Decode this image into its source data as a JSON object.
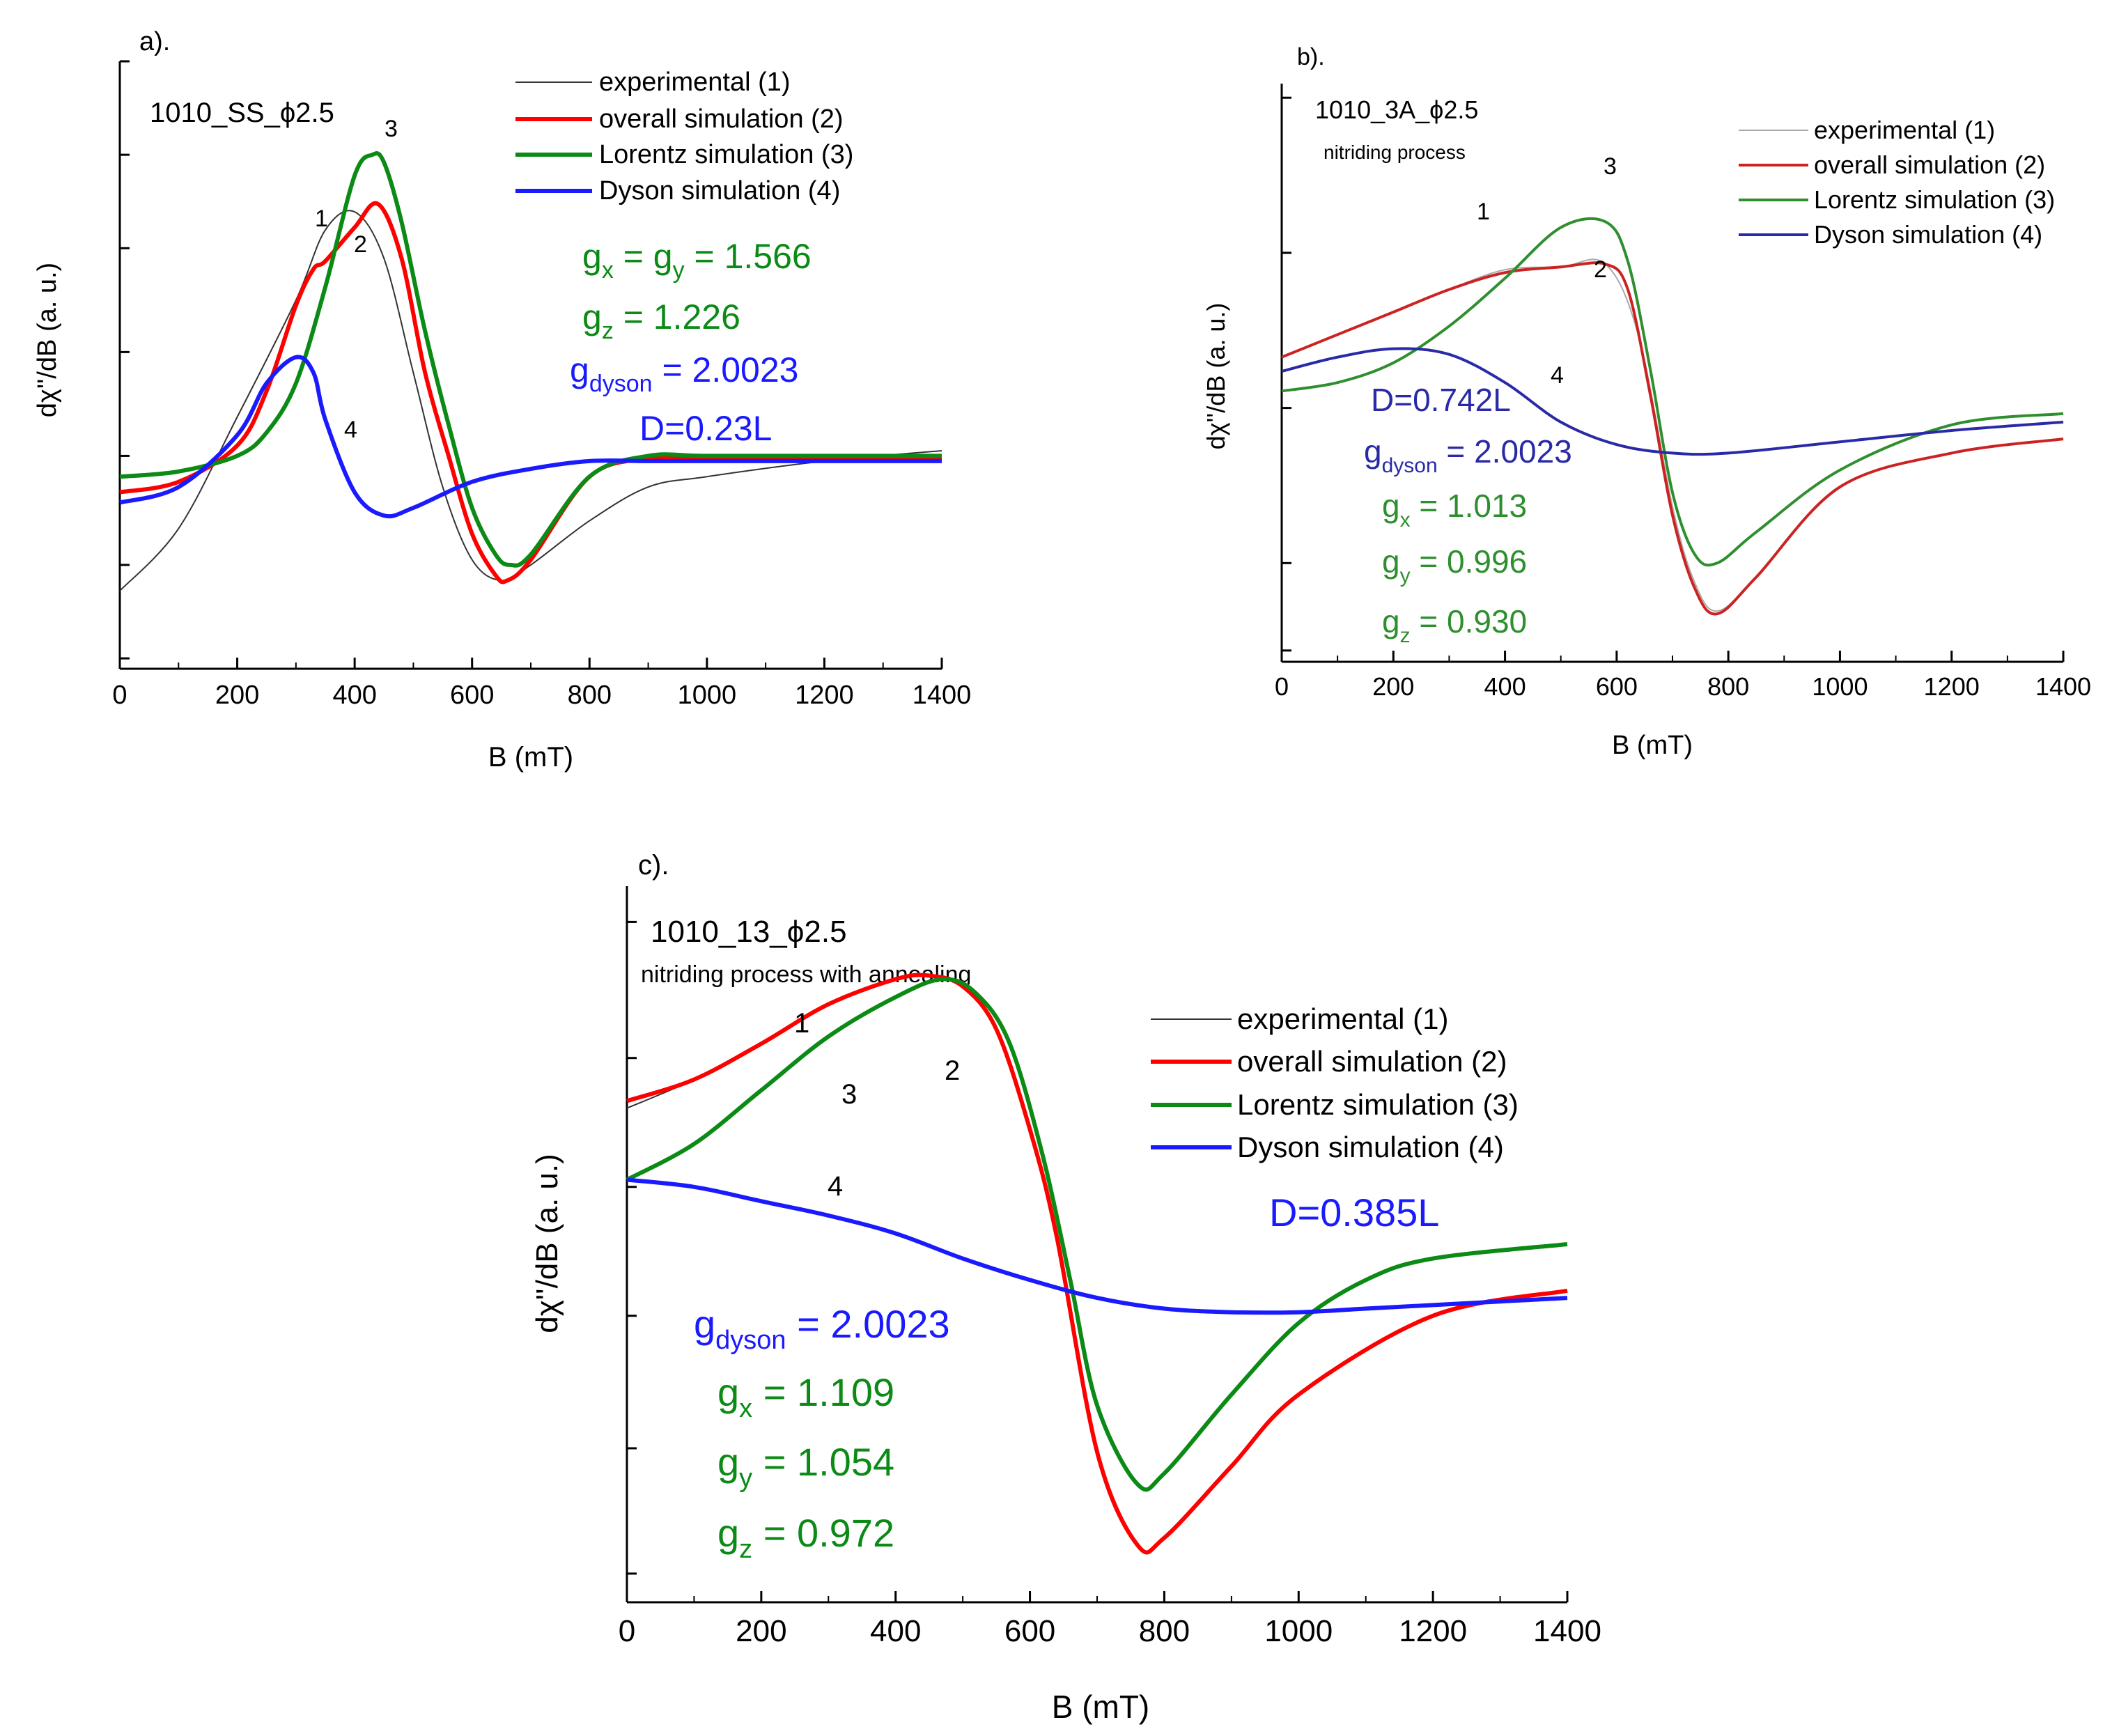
{
  "chart_data": [
    {
      "type": "line",
      "panel_label": "a).",
      "sample": "1010_SS_ϕ2.5",
      "subtitle": "",
      "xlabel": "B (mT)",
      "ylabel": "dχ''/dB (a. u.)",
      "xlim": [
        0,
        1400
      ],
      "ylim": [
        -1.0,
        1.0
      ],
      "xticks": [
        0,
        200,
        400,
        600,
        800,
        1000,
        1200,
        1400
      ],
      "legend": [
        "experimental (1)",
        "overall simulation (2)",
        "Lorentz simulation (3)",
        "Dyson simulation (4)"
      ],
      "curve_labels": [
        "1",
        "2",
        "3",
        "4"
      ],
      "params": [
        {
          "text": "g",
          "sub": "x",
          "rest": " = g",
          "sub2": "y",
          "tail": " = 1.566",
          "color": "#0b8a16"
        },
        {
          "text": "g",
          "sub": "z",
          "rest": " = 1.226",
          "sub2": "",
          "tail": "",
          "color": "#0b8a16"
        },
        {
          "text": "g",
          "sub": "dyson",
          "rest": " = 2.0023",
          "sub2": "",
          "tail": "",
          "color": "#1a1aff"
        },
        {
          "text": "D=0.23L",
          "sub": "",
          "rest": "",
          "sub2": "",
          "tail": "",
          "color": "#1a1aff"
        }
      ],
      "series": [
        {
          "name": "experimental (1)",
          "color": "#333333",
          "x": [
            0,
            100,
            200,
            300,
            350,
            400,
            450,
            500,
            550,
            600,
            650,
            700,
            800,
            900,
            1000,
            1200,
            1400
          ],
          "values": [
            -0.62,
            -0.38,
            0.05,
            0.5,
            0.77,
            0.84,
            0.66,
            0.22,
            -0.22,
            -0.5,
            -0.58,
            -0.52,
            -0.35,
            -0.22,
            -0.18,
            -0.12,
            -0.08
          ]
        },
        {
          "name": "overall simulation (2)",
          "color": "#ff0000",
          "x": [
            0,
            100,
            200,
            250,
            300,
            330,
            350,
            400,
            440,
            480,
            520,
            560,
            600,
            640,
            660,
            700,
            800,
            900,
            1000,
            1200,
            1400
          ],
          "values": [
            -0.24,
            -0.2,
            -0.06,
            0.15,
            0.48,
            0.62,
            0.65,
            0.78,
            0.87,
            0.66,
            0.22,
            -0.1,
            -0.4,
            -0.56,
            -0.58,
            -0.5,
            -0.18,
            -0.11,
            -0.11,
            -0.11,
            -0.11
          ]
        },
        {
          "name": "Lorentz simulation (3)",
          "color": "#0b8a16",
          "x": [
            0,
            100,
            200,
            250,
            300,
            350,
            400,
            430,
            450,
            480,
            520,
            560,
            600,
            640,
            665,
            700,
            800,
            900,
            1000,
            1200,
            1400
          ],
          "values": [
            -0.18,
            -0.16,
            -0.1,
            -0.01,
            0.18,
            0.55,
            0.98,
            1.06,
            1.03,
            0.8,
            0.38,
            0.02,
            -0.3,
            -0.48,
            -0.52,
            -0.48,
            -0.18,
            -0.1,
            -0.1,
            -0.1,
            -0.1
          ]
        },
        {
          "name": "Dyson simulation (4)",
          "color": "#1a1aff",
          "x": [
            0,
            100,
            200,
            250,
            300,
            330,
            350,
            400,
            450,
            500,
            600,
            700,
            800,
            900,
            1000,
            1200,
            1400
          ],
          "values": [
            -0.28,
            -0.22,
            -0.02,
            0.18,
            0.28,
            0.22,
            0.04,
            -0.24,
            -0.33,
            -0.3,
            -0.2,
            -0.15,
            -0.12,
            -0.12,
            -0.12,
            -0.12,
            -0.12
          ]
        }
      ]
    },
    {
      "type": "line",
      "panel_label": "b).",
      "sample": "1010_3A_ϕ2.5",
      "subtitle": "nitriding process",
      "xlabel": "B (mT)",
      "ylabel": "dχ''/dB (a. u.)",
      "xlim": [
        0,
        1400
      ],
      "ylim": [
        -1.0,
        1.0
      ],
      "xticks": [
        0,
        200,
        400,
        600,
        800,
        1000,
        1200,
        1400
      ],
      "legend": [
        "experimental (1)",
        "overall simulation (2)",
        "Lorentz simulation (3)",
        "Dyson simulation (4)"
      ],
      "curve_labels": [
        "1",
        "2",
        "3",
        "4"
      ],
      "params": [
        {
          "text": "D=0.742L",
          "sub": "",
          "rest": "",
          "sub2": "",
          "tail": "",
          "color": "#2a2aa8"
        },
        {
          "text": "g",
          "sub": "dyson",
          "rest": " = 2.0023",
          "sub2": "",
          "tail": "",
          "color": "#2a2aa8"
        },
        {
          "text": "g",
          "sub": "x",
          "rest": " = 1.013",
          "sub2": "",
          "tail": "",
          "color": "#2f8f2f"
        },
        {
          "text": "g",
          "sub": "y",
          "rest": " = 0.996",
          "sub2": "",
          "tail": "",
          "color": "#2f8f2f"
        },
        {
          "text": "g",
          "sub": "z",
          "rest": " = 0.930",
          "sub2": "",
          "tail": "",
          "color": "#2f8f2f"
        }
      ],
      "series": [
        {
          "name": "experimental (1)",
          "color": "#aaaaaa",
          "x": [
            0,
            100,
            200,
            300,
            400,
            500,
            580,
            640,
            700,
            740,
            780,
            850,
            1000,
            1200,
            1400
          ],
          "values": [
            0.18,
            0.26,
            0.34,
            0.42,
            0.49,
            0.5,
            0.51,
            0.25,
            -0.35,
            -0.62,
            -0.72,
            -0.6,
            -0.28,
            -0.16,
            -0.11
          ]
        },
        {
          "name": "overall simulation (2)",
          "color": "#cc2222",
          "x": [
            0,
            100,
            200,
            300,
            400,
            500,
            580,
            620,
            660,
            700,
            740,
            780,
            850,
            1000,
            1200,
            1400
          ],
          "values": [
            0.18,
            0.26,
            0.34,
            0.42,
            0.48,
            0.5,
            0.51,
            0.42,
            0.05,
            -0.38,
            -0.64,
            -0.73,
            -0.6,
            -0.28,
            -0.16,
            -0.11
          ]
        },
        {
          "name": "Lorentz simulation (3)",
          "color": "#2f8f2f",
          "x": [
            0,
            100,
            200,
            300,
            400,
            500,
            580,
            620,
            660,
            700,
            740,
            780,
            850,
            1000,
            1200,
            1400
          ],
          "values": [
            0.06,
            0.09,
            0.16,
            0.29,
            0.46,
            0.64,
            0.66,
            0.52,
            0.14,
            -0.3,
            -0.52,
            -0.55,
            -0.44,
            -0.22,
            -0.06,
            -0.02
          ]
        },
        {
          "name": "Dyson simulation (4)",
          "color": "#2a2aa8",
          "x": [
            0,
            100,
            200,
            300,
            400,
            500,
            600,
            700,
            800,
            1000,
            1200,
            1400
          ],
          "values": [
            0.13,
            0.18,
            0.21,
            0.19,
            0.09,
            -0.05,
            -0.13,
            -0.16,
            -0.16,
            -0.12,
            -0.08,
            -0.05
          ]
        }
      ]
    },
    {
      "type": "line",
      "panel_label": "c).",
      "sample": "1010_13_ϕ2.5",
      "subtitle": "nitriding process with annealing",
      "xlabel": "B (mT)",
      "ylabel": "dχ''/dB (a. u.)",
      "xlim": [
        0,
        1400
      ],
      "ylim": [
        -1.0,
        1.0
      ],
      "xticks": [
        0,
        200,
        400,
        600,
        800,
        1000,
        1200,
        1400
      ],
      "legend": [
        "experimental (1)",
        "overall simulation (2)",
        "Lorentz simulation (3)",
        "Dyson simulation (4)"
      ],
      "curve_labels": [
        "1",
        "2",
        "3",
        "4"
      ],
      "params": [
        {
          "text": "D=0.385L",
          "sub": "",
          "rest": "",
          "sub2": "",
          "tail": "",
          "color": "#1a1aff"
        },
        {
          "text": "g",
          "sub": "dyson",
          "rest": " = 2.0023",
          "sub2": "",
          "tail": "",
          "color": "#1a1aff"
        },
        {
          "text": "g",
          "sub": "x",
          "rest": " = 1.109",
          "sub2": "",
          "tail": "",
          "color": "#0b8a16"
        },
        {
          "text": "g",
          "sub": "y",
          "rest": " = 1.054",
          "sub2": "",
          "tail": "",
          "color": "#0b8a16"
        },
        {
          "text": "g",
          "sub": "z",
          "rest": " = 0.972",
          "sub2": "",
          "tail": "",
          "color": "#0b8a16"
        }
      ],
      "series": [
        {
          "name": "experimental (1)",
          "color": "#333333",
          "x": [
            0,
            100,
            200,
            300,
            400,
            450,
            500,
            550,
            600,
            640,
            700,
            760,
            800,
            900,
            1000,
            1200,
            1400
          ],
          "values": [
            0.38,
            0.46,
            0.56,
            0.67,
            0.74,
            0.75,
            0.72,
            0.6,
            0.32,
            0.02,
            -0.58,
            -0.84,
            -0.82,
            -0.62,
            -0.42,
            -0.2,
            -0.13
          ]
        },
        {
          "name": "overall simulation (2)",
          "color": "#ff0000",
          "x": [
            0,
            100,
            200,
            300,
            400,
            450,
            500,
            550,
            600,
            640,
            700,
            760,
            800,
            900,
            1000,
            1200,
            1400
          ],
          "values": [
            0.4,
            0.46,
            0.56,
            0.67,
            0.74,
            0.75,
            0.72,
            0.6,
            0.32,
            0.02,
            -0.58,
            -0.84,
            -0.82,
            -0.62,
            -0.42,
            -0.2,
            -0.13
          ]
        },
        {
          "name": "Lorentz simulation (3)",
          "color": "#0b8a16",
          "x": [
            0,
            100,
            200,
            300,
            400,
            470,
            520,
            570,
            620,
            660,
            700,
            760,
            800,
            900,
            1000,
            1100,
            1200,
            1400
          ],
          "values": [
            0.18,
            0.28,
            0.43,
            0.58,
            0.69,
            0.74,
            0.7,
            0.56,
            0.24,
            -0.1,
            -0.45,
            -0.67,
            -0.64,
            -0.42,
            -0.22,
            -0.1,
            -0.04,
            0.0
          ]
        },
        {
          "name": "Dyson simulation (4)",
          "color": "#1a1aff",
          "x": [
            0,
            100,
            200,
            300,
            400,
            500,
            600,
            700,
            800,
            900,
            1000,
            1100,
            1200,
            1300,
            1400
          ],
          "values": [
            0.18,
            0.16,
            0.12,
            0.08,
            0.03,
            -0.04,
            -0.1,
            -0.15,
            -0.18,
            -0.19,
            -0.19,
            -0.18,
            -0.17,
            -0.16,
            -0.15
          ]
        }
      ]
    }
  ]
}
